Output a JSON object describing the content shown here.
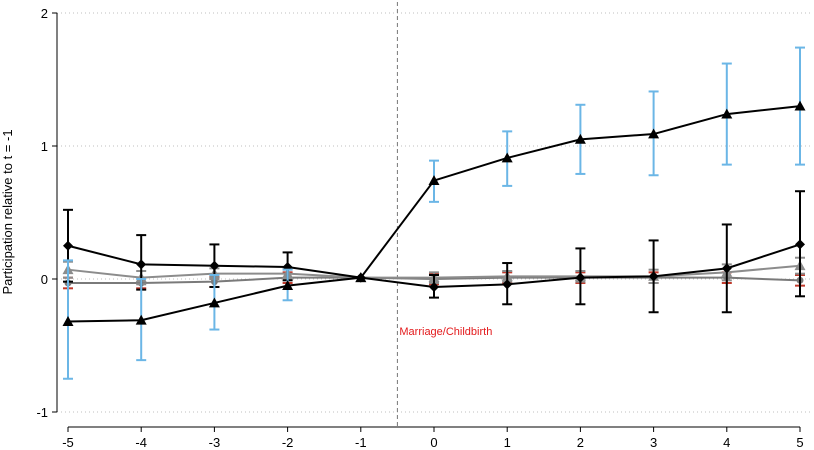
{
  "chart_data": {
    "type": "line",
    "title": "",
    "xlabel": "",
    "ylabel": "Participation relative to t = -1",
    "xlim": [
      -5,
      5
    ],
    "ylim": [
      -1,
      2
    ],
    "x": [
      -5,
      -4,
      -3,
      -2,
      -1,
      0,
      1,
      2,
      3,
      4,
      5
    ],
    "xticks": [
      "-5",
      "-4",
      "-3",
      "-2",
      "-1",
      "0",
      "1",
      "2",
      "3",
      "4",
      "5"
    ],
    "yticks": [
      "-1",
      "0",
      "1",
      "2"
    ],
    "grid": "horizontal dotted",
    "legend": "none",
    "event_line": {
      "x": -0.5,
      "label": "Marriage/Childbirth",
      "color": "#e31a1c"
    },
    "series": [
      {
        "marker": "triangle",
        "color": "#000000",
        "error_color": "#6bb6e6",
        "values": [
          -0.32,
          -0.31,
          -0.18,
          -0.05,
          0.01,
          0.74,
          0.91,
          1.05,
          1.09,
          1.24,
          1.3
        ],
        "ci_low": [
          -0.75,
          -0.61,
          -0.38,
          -0.16,
          0.01,
          0.58,
          0.7,
          0.79,
          0.78,
          0.86,
          0.86
        ],
        "ci_high": [
          0.14,
          0.0,
          0.03,
          0.07,
          0.01,
          0.89,
          1.11,
          1.31,
          1.41,
          1.62,
          1.74
        ]
      },
      {
        "marker": "diamond",
        "color": "#000000",
        "error_color": "#000000",
        "values": [
          0.25,
          0.11,
          0.1,
          0.09,
          0.01,
          -0.06,
          -0.04,
          0.01,
          0.02,
          0.08,
          0.26
        ],
        "ci_low": [
          -0.02,
          -0.08,
          -0.06,
          -0.01,
          0.01,
          -0.14,
          -0.19,
          -0.19,
          -0.25,
          -0.25,
          -0.13
        ],
        "ci_high": [
          0.52,
          0.33,
          0.26,
          0.2,
          0.01,
          0.03,
          0.12,
          0.23,
          0.29,
          0.41,
          0.66
        ]
      },
      {
        "marker": "circle",
        "color": "#7a7a7a",
        "error_color": "#c0392b",
        "values": [
          -0.03,
          -0.03,
          -0.02,
          0.01,
          0.01,
          0.0,
          0.01,
          0.01,
          0.01,
          0.01,
          -0.01
        ],
        "ci_low": [
          -0.07,
          -0.07,
          -0.06,
          -0.03,
          0.01,
          -0.04,
          -0.03,
          -0.03,
          -0.03,
          -0.03,
          -0.05
        ],
        "ci_high": [
          0.01,
          0.01,
          0.02,
          0.05,
          0.01,
          0.04,
          0.05,
          0.05,
          0.05,
          0.05,
          0.03
        ]
      },
      {
        "marker": "triangle",
        "color": "#8c8c8c",
        "error_color": "#8c8c8c",
        "values": [
          0.07,
          0.01,
          0.04,
          0.04,
          0.01,
          0.01,
          0.02,
          0.02,
          0.02,
          0.05,
          0.1
        ],
        "ci_low": [
          0.01,
          -0.04,
          0.0,
          0.0,
          0.01,
          -0.03,
          -0.02,
          -0.02,
          -0.03,
          -0.01,
          0.04
        ],
        "ci_high": [
          0.13,
          0.06,
          0.08,
          0.08,
          0.01,
          0.05,
          0.06,
          0.06,
          0.07,
          0.11,
          0.16
        ]
      }
    ]
  }
}
